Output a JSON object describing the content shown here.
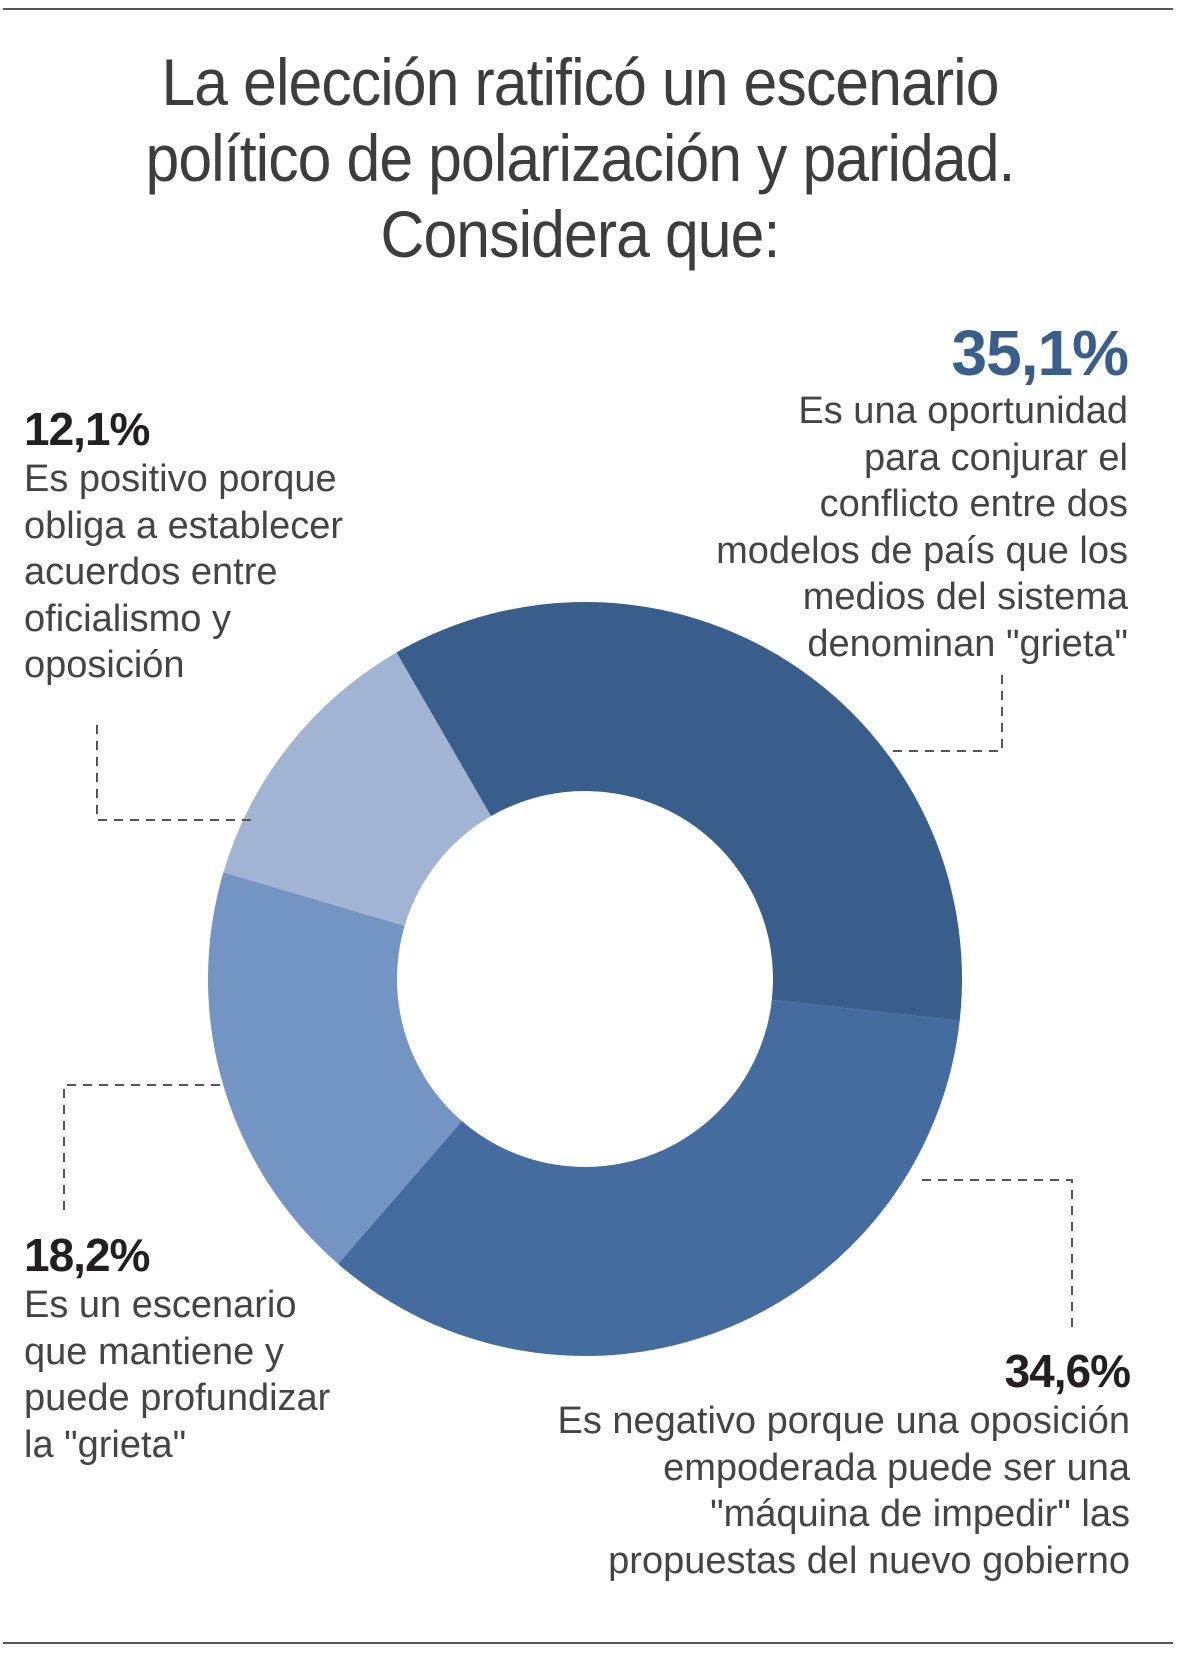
{
  "title_lines": [
    "La elección ratificó un escenario",
    "político de polarización y paridad.",
    "Considera que:"
  ],
  "colors": {
    "slice_1": "#3a5e8c",
    "slice_2": "#446c9f",
    "slice_3": "#7494c4",
    "slice_4": "#a2b4d3",
    "highlight_pct": "#3a5e8c",
    "pct_text": "#231f20",
    "body_text": "#444444",
    "leader_line": "#555555"
  },
  "chart_data": {
    "type": "pie",
    "variant": "donut",
    "title": "La elección ratificó un escenario político de polarización y paridad. Considera que:",
    "slices": [
      {
        "label": "35,1%",
        "value": 35.1,
        "description_lines": [
          "Es una oportunidad",
          "para conjurar el",
          "conflicto entre dos",
          "modelos de país que los",
          "medios del sistema",
          "denominan \"grieta\""
        ]
      },
      {
        "label": "34,6%",
        "value": 34.6,
        "description_lines": [
          "Es negativo porque una oposición",
          "empoderada puede ser una",
          "\"máquina de impedir\" las",
          "propuestas del nuevo gobierno"
        ]
      },
      {
        "label": "18,2%",
        "value": 18.2,
        "description_lines": [
          "Es un escenario",
          "que mantiene y",
          "puede profundizar",
          "la \"grieta\""
        ]
      },
      {
        "label": "12,1%",
        "value": 12.1,
        "description_lines": [
          "Es positivo porque",
          "obliga a establecer",
          "acuerdos entre",
          "oficialismo y",
          "oposición"
        ]
      }
    ],
    "legend": "callouts-around-donut"
  }
}
